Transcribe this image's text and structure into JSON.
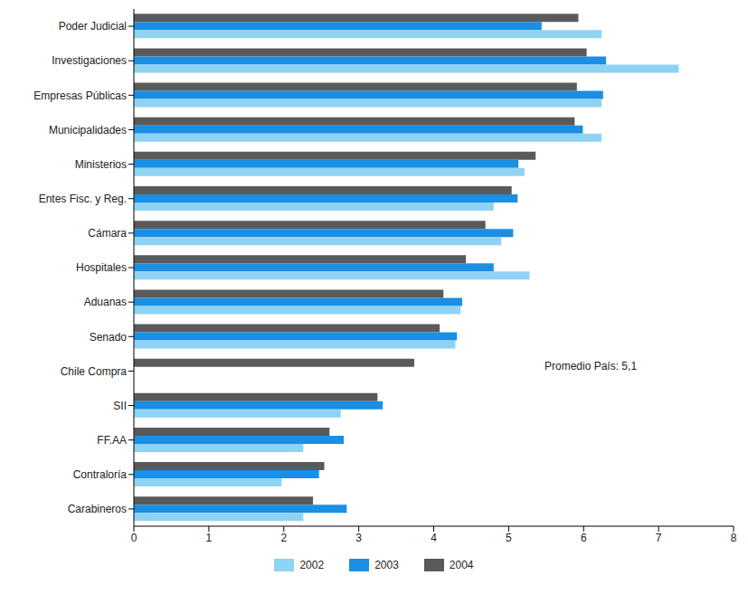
{
  "chart_data": {
    "type": "bar",
    "orientation": "horizontal",
    "categories": [
      "Poder Judicial",
      "Investigaciones",
      "Empresas Públicas",
      "Municipalidades",
      "Ministerios",
      "Entes Fisc. y Reg.",
      "Cámara",
      "Hospitales",
      "Aduanas",
      "Senado",
      "Chile Compra",
      "SII",
      "FF.AA",
      "Contraloría",
      "Carabineros"
    ],
    "series": [
      {
        "name": "2002",
        "color": "#8fd3f4",
        "values": [
          6.24,
          7.27,
          6.24,
          6.24,
          5.21,
          4.8,
          4.9,
          5.28,
          4.36,
          4.29,
          null,
          2.76,
          2.26,
          1.97,
          2.26
        ]
      },
      {
        "name": "2003",
        "color": "#1a8fe3",
        "values": [
          5.44,
          6.3,
          6.26,
          5.99,
          5.13,
          5.12,
          5.06,
          4.8,
          4.38,
          4.31,
          null,
          3.32,
          2.8,
          2.47,
          2.84
        ]
      },
      {
        "name": "2004",
        "color": "#5a5a5a",
        "values": [
          5.93,
          6.04,
          5.91,
          5.88,
          5.36,
          5.04,
          4.69,
          4.43,
          4.13,
          4.08,
          3.74,
          3.25,
          2.61,
          2.54,
          2.39
        ]
      }
    ],
    "xlim": [
      0,
      8
    ],
    "xticks": [
      0,
      1,
      2,
      3,
      4,
      5,
      6,
      7,
      8
    ],
    "annotation": "Promedio País: 5,1",
    "legend": "bottom",
    "grid": false
  }
}
